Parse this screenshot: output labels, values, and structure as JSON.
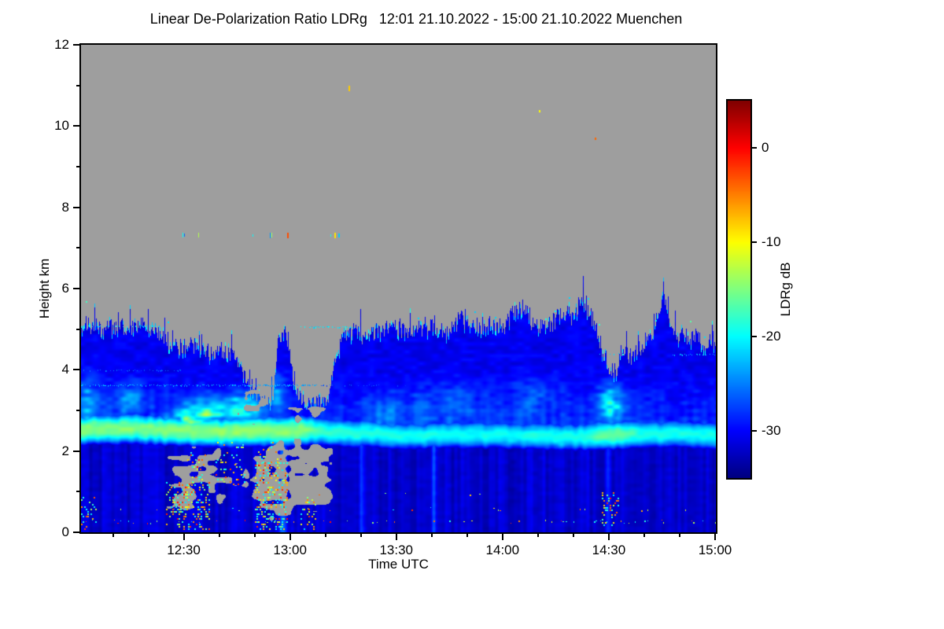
{
  "chart_data": {
    "type": "heatmap",
    "title": "Linear De-Polarization Ratio LDRg   12:01 21.10.2022 - 15:00 21.10.2022 Muenchen",
    "quantity": "Linear De-Polarization Ratio LDRg",
    "time_start": "12:01 21.10.2022",
    "time_end": "15:00 21.10.2022",
    "station": "Muenchen",
    "xlabel": "Time UTC",
    "ylabel": "Height km",
    "ylim": [
      0,
      12
    ],
    "y_ticks": [
      0,
      2,
      4,
      6,
      8,
      10,
      12
    ],
    "y_minor_ticks": [
      1,
      3,
      5,
      7,
      9,
      11
    ],
    "x_ticks": [
      {
        "label": "12:30",
        "minute": 29
      },
      {
        "label": "13:00",
        "minute": 59
      },
      {
        "label": "13:30",
        "minute": 89
      },
      {
        "label": "14:00",
        "minute": 119
      },
      {
        "label": "14:30",
        "minute": 149
      },
      {
        "label": "15:00",
        "minute": 179
      }
    ],
    "x_total_minutes": 179,
    "colorbar": {
      "label": "LDRg dB",
      "ticks": [
        0,
        -10,
        -20,
        -30
      ],
      "vmax": 5,
      "vmin": -35,
      "colormap": "jet",
      "top_color": "#800000",
      "bottom_color": "#000080"
    },
    "no_data_color": "#9e9e9e",
    "grid": {
      "times": [
        "12:01",
        "12:15",
        "12:30",
        "12:45",
        "13:00",
        "13:15",
        "13:30",
        "13:45",
        "14:00",
        "14:15",
        "14:30",
        "14:45",
        "15:00"
      ],
      "heights_km": [
        0,
        1,
        2,
        3,
        4,
        5,
        6,
        7,
        8,
        9,
        10,
        11,
        12
      ],
      "ldr_db": [
        [
          -25,
          -34,
          -10,
          -33,
          -5,
          -34,
          -34,
          -34,
          -34,
          -34,
          -15,
          -34,
          -34
        ],
        [
          -34,
          -33,
          -15,
          -33,
          -12,
          -33,
          -34,
          -34,
          -34,
          -34,
          -33,
          -34,
          -34
        ],
        [
          -33,
          -33,
          null,
          -33,
          null,
          -33,
          -33,
          -33,
          -33,
          -33,
          -33,
          -33,
          -33
        ],
        [
          -28,
          -27,
          -24,
          -25,
          -30,
          -30,
          -30,
          -30,
          -30,
          -30,
          -23,
          -30,
          -30
        ],
        [
          -31,
          -31,
          -31,
          -32,
          null,
          -31,
          -31,
          -31,
          -31,
          -31,
          -30,
          -31,
          -31
        ],
        [
          -30,
          -31,
          null,
          null,
          null,
          null,
          -31,
          -31,
          -30,
          -31,
          null,
          -31,
          null
        ],
        [
          null,
          null,
          null,
          null,
          null,
          null,
          null,
          null,
          null,
          null,
          null,
          null,
          null
        ],
        [
          null,
          null,
          -18,
          null,
          -12,
          -15,
          null,
          null,
          null,
          null,
          null,
          null,
          null
        ],
        [
          null,
          null,
          null,
          null,
          null,
          null,
          null,
          null,
          null,
          null,
          null,
          null,
          null
        ],
        [
          null,
          null,
          null,
          null,
          null,
          null,
          null,
          null,
          null,
          null,
          null,
          null,
          null
        ],
        [
          null,
          null,
          null,
          null,
          null,
          null,
          null,
          null,
          null,
          -10,
          null,
          null,
          null
        ],
        [
          null,
          null,
          null,
          null,
          null,
          -9,
          null,
          null,
          null,
          null,
          null,
          null,
          null
        ],
        [
          null,
          null,
          null,
          null,
          null,
          null,
          null,
          null,
          null,
          null,
          null,
          null,
          null
        ]
      ],
      "bright_band_ldr_db": [
        -16,
        -16,
        -15,
        -14,
        -15,
        -19,
        -20,
        -20,
        -20,
        -19,
        -16,
        -19,
        -19
      ],
      "bright_band_height_km": 2.45
    },
    "render_features": {
      "cloud_top_profile": {
        "minutes": [
          0,
          6,
          12,
          18,
          22,
          27,
          31,
          36,
          41,
          45,
          48,
          51,
          54,
          55.5,
          57,
          58.5,
          60,
          63,
          67,
          70,
          71.5,
          74,
          77,
          80,
          84,
          88,
          92,
          96,
          100,
          104,
          107,
          110,
          113,
          116,
          119,
          122,
          125,
          127,
          130,
          133,
          136,
          139,
          141,
          143,
          145,
          147,
          149,
          151,
          153,
          155,
          157,
          159,
          161,
          163,
          164.5,
          166,
          168,
          170,
          172,
          174,
          176,
          178,
          179
        ],
        "km": [
          5.15,
          5.0,
          5.05,
          5.1,
          4.9,
          4.55,
          4.65,
          4.4,
          4.5,
          4.15,
          3.5,
          3.25,
          3.3,
          4.6,
          4.9,
          4.75,
          3.6,
          3.25,
          3.2,
          3.35,
          4.3,
          4.85,
          4.95,
          4.8,
          5.0,
          5.05,
          4.95,
          5.0,
          5.05,
          4.9,
          5.3,
          5.05,
          4.95,
          5.2,
          5.0,
          5.45,
          5.6,
          5.2,
          5.0,
          5.15,
          5.45,
          5.2,
          5.85,
          5.5,
          5.1,
          4.5,
          4.05,
          3.95,
          4.45,
          4.3,
          4.55,
          4.5,
          4.85,
          5.35,
          5.95,
          5.1,
          4.75,
          4.95,
          4.7,
          4.85,
          4.55,
          4.75,
          4.7
        ]
      },
      "bright_band": {
        "minutes": [
          0,
          20,
          35,
          45,
          62,
          68,
          90,
          120,
          142,
          146,
          153,
          158,
          179
        ],
        "peak_db": [
          -14.8,
          -15,
          -14.8,
          -14.2,
          -14.5,
          -18,
          -19.5,
          -19.5,
          -19,
          -16.5,
          -16.5,
          -19,
          -19.3
        ],
        "center_minutes": [
          0,
          40,
          60,
          80,
          100,
          120,
          140,
          150,
          160,
          179
        ],
        "center_km": [
          2.53,
          2.5,
          2.48,
          2.44,
          2.4,
          2.36,
          2.38,
          2.42,
          2.4,
          2.38
        ],
        "core_half_width_km": 0.15
      },
      "attenuation_gaps": [
        [
          24,
          33,
          2.2,
          0.45,
          0.5
        ],
        [
          28,
          40,
          2.25,
          1.05,
          0.55
        ],
        [
          34,
          45,
          1.95,
          0.5,
          0.45
        ],
        [
          48,
          60,
          2.3,
          0.3,
          0.75
        ],
        [
          57,
          71,
          2.3,
          0.5,
          0.8
        ],
        [
          44,
          49,
          1.7,
          0.55,
          0.35
        ],
        [
          44,
          54,
          3.5,
          2.62,
          0.55
        ],
        [
          58,
          71,
          3.3,
          2.62,
          0.5
        ]
      ],
      "enhanced_patches": [
        [
          36,
          2.95,
          8,
          0.35,
          9
        ],
        [
          46,
          3.1,
          5,
          0.3,
          8.5
        ],
        [
          30,
          2.75,
          5,
          0.25,
          7
        ],
        [
          149.5,
          3.15,
          3.5,
          0.45,
          9.5
        ],
        [
          55,
          3.5,
          2.5,
          0.5,
          5
        ],
        [
          2,
          3.2,
          3,
          0.6,
          6
        ],
        [
          14,
          3.3,
          4,
          0.4,
          5
        ],
        [
          105,
          3.2,
          10,
          0.5,
          3
        ],
        [
          128,
          3.3,
          8,
          0.5,
          3
        ],
        [
          88,
          3.0,
          8,
          0.4,
          3
        ]
      ],
      "bright_columns_minutes": [
        56.5,
        57.5,
        79,
        99.5,
        148.5
      ],
      "speckle_clusters": [
        [
          24,
          36,
          0.1,
          1.3,
          0.3
        ],
        [
          49,
          58,
          0.1,
          1.75,
          0.33
        ],
        [
          30,
          35,
          1.2,
          2.0,
          0.15
        ],
        [
          147,
          152,
          0.2,
          1.0,
          0.22
        ],
        [
          62,
          66,
          0.1,
          0.9,
          0.18
        ],
        [
          38,
          46,
          1.2,
          2.25,
          0.15
        ],
        [
          50,
          57,
          1.75,
          2.3,
          0.12
        ],
        [
          0,
          4,
          0.1,
          0.9,
          0.2
        ]
      ],
      "speckle_rows": [
        [
          0.28,
          0,
          179,
          0.16
        ],
        [
          0.58,
          0,
          179,
          0.07
        ],
        [
          0.95,
          55,
          115,
          0.05
        ]
      ],
      "mid_level_dashes": {
        "height_km": 7.32,
        "minutes": [
          28.6,
          29.1,
          33.2,
          48.5,
          53.2,
          53.8,
          58.2,
          70.5,
          71.6,
          72.7
        ],
        "ldr_db": [
          -20,
          -26,
          -13,
          -20,
          -24,
          -14,
          -3,
          -19,
          -9,
          -22
        ]
      },
      "isolated_points": [
        [
          75.5,
          11.0,
          -8
        ],
        [
          129.3,
          10.4,
          -10
        ],
        [
          145.0,
          9.72,
          -4
        ]
      ],
      "dashed_layers": [
        [
          3.62,
          0,
          67,
          0.5,
          -23
        ],
        [
          3.62,
          67,
          92,
          0.2,
          -27
        ],
        [
          3.98,
          0,
          28,
          0.22,
          -26
        ],
        [
          5.08,
          0,
          22,
          0.45,
          -21
        ],
        [
          5.05,
          62,
          79,
          0.4,
          -21
        ],
        [
          4.4,
          146,
          154,
          0.35,
          -21
        ],
        [
          4.38,
          167,
          179,
          0.4,
          -22
        ]
      ],
      "cloud_ldr_db": -32,
      "sub_band_ldr_db": -33.7
    }
  }
}
